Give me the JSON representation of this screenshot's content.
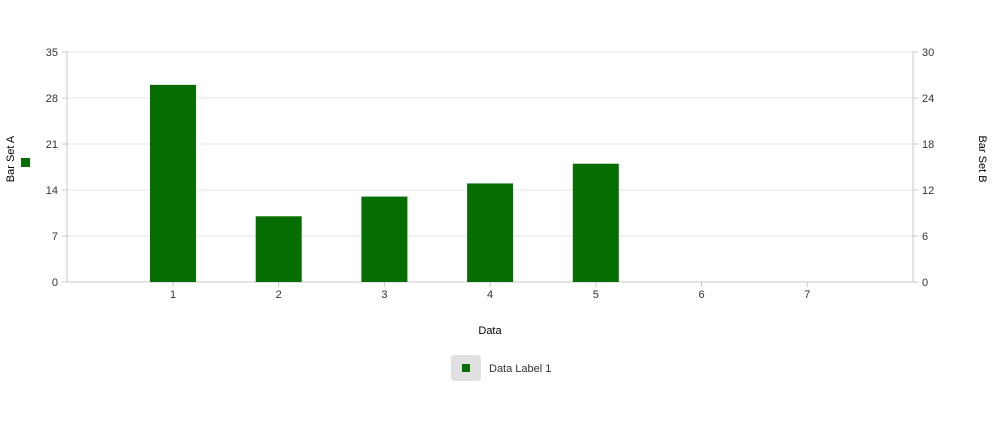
{
  "chart_data": {
    "type": "bar",
    "categories": [
      "1",
      "2",
      "3",
      "4",
      "5",
      "6",
      "7"
    ],
    "series": [
      {
        "name": "Data Label 1",
        "values": [
          30,
          10,
          13,
          15,
          18,
          null,
          null
        ],
        "color": "#066e00",
        "axis": "left"
      }
    ],
    "xlabel": "Data",
    "ylabel_left": "Bar Set A",
    "ylabel_right": "Bar Set B",
    "ylim_left": [
      0,
      35
    ],
    "ylim_right": [
      0,
      30
    ],
    "left_ticks": [
      "0",
      "7",
      "14",
      "21",
      "28",
      "35"
    ],
    "right_ticks": [
      "0",
      "6",
      "12",
      "18",
      "24",
      "30"
    ],
    "grid": true,
    "legend_position": "bottom"
  },
  "colors": {
    "bar": "#066e00",
    "grid": "#e6e6e6",
    "axis": "#c8c8c8",
    "legend_box": "#e0e0e0"
  }
}
